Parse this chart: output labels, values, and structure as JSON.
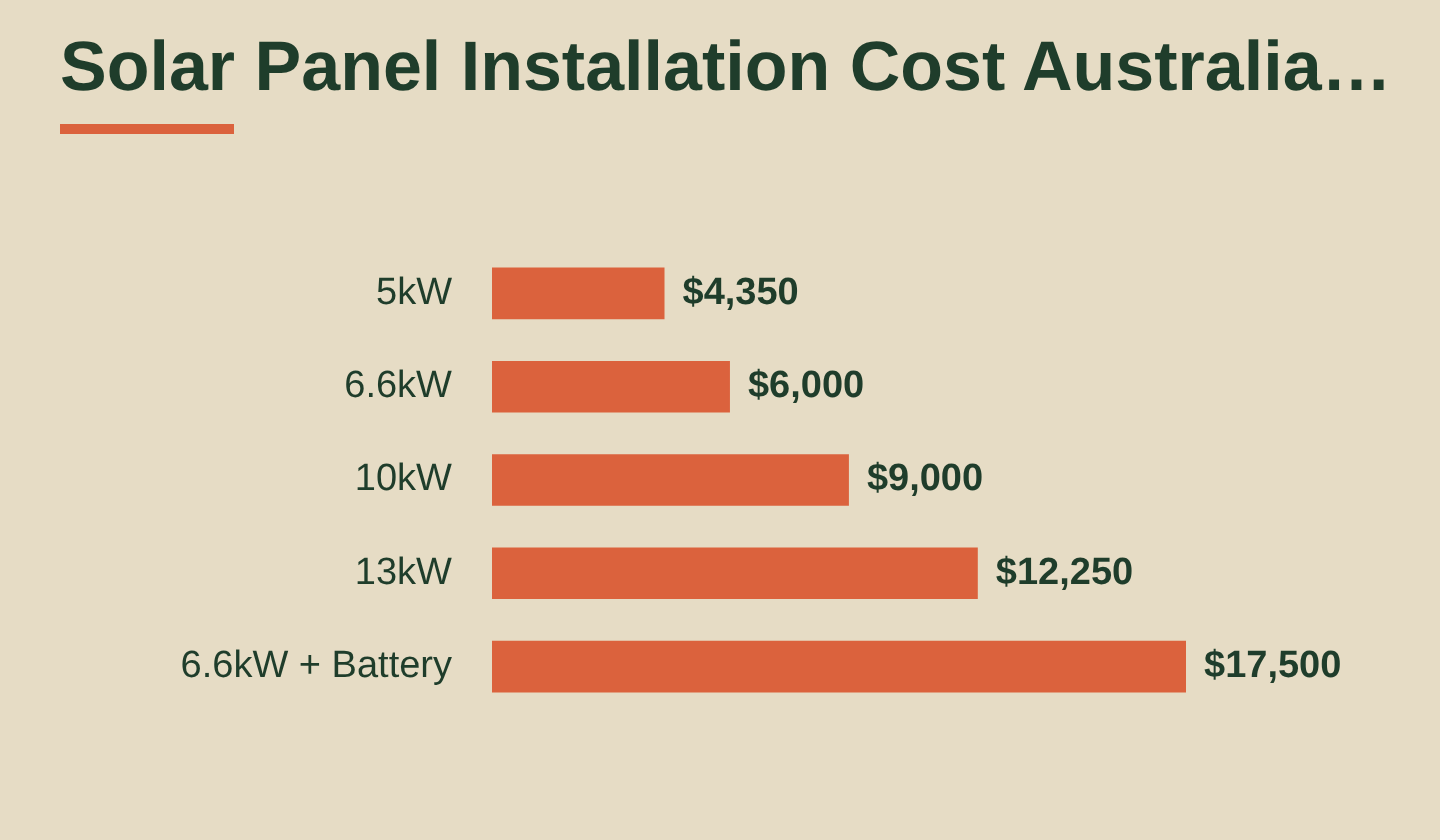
{
  "chart_data": {
    "type": "bar",
    "orientation": "horizontal",
    "title": "Solar Panel Installation Cost Australia…",
    "categories": [
      "5kW",
      "6.6kW",
      "10kW",
      "13kW",
      "6.6kW + Battery"
    ],
    "values": [
      4350,
      6000,
      9000,
      12250,
      17500
    ],
    "value_labels": [
      "$4,350",
      "$6,000",
      "$9,000",
      "$12,250",
      "$17,500"
    ],
    "color": "#db623d",
    "legend": false
  }
}
